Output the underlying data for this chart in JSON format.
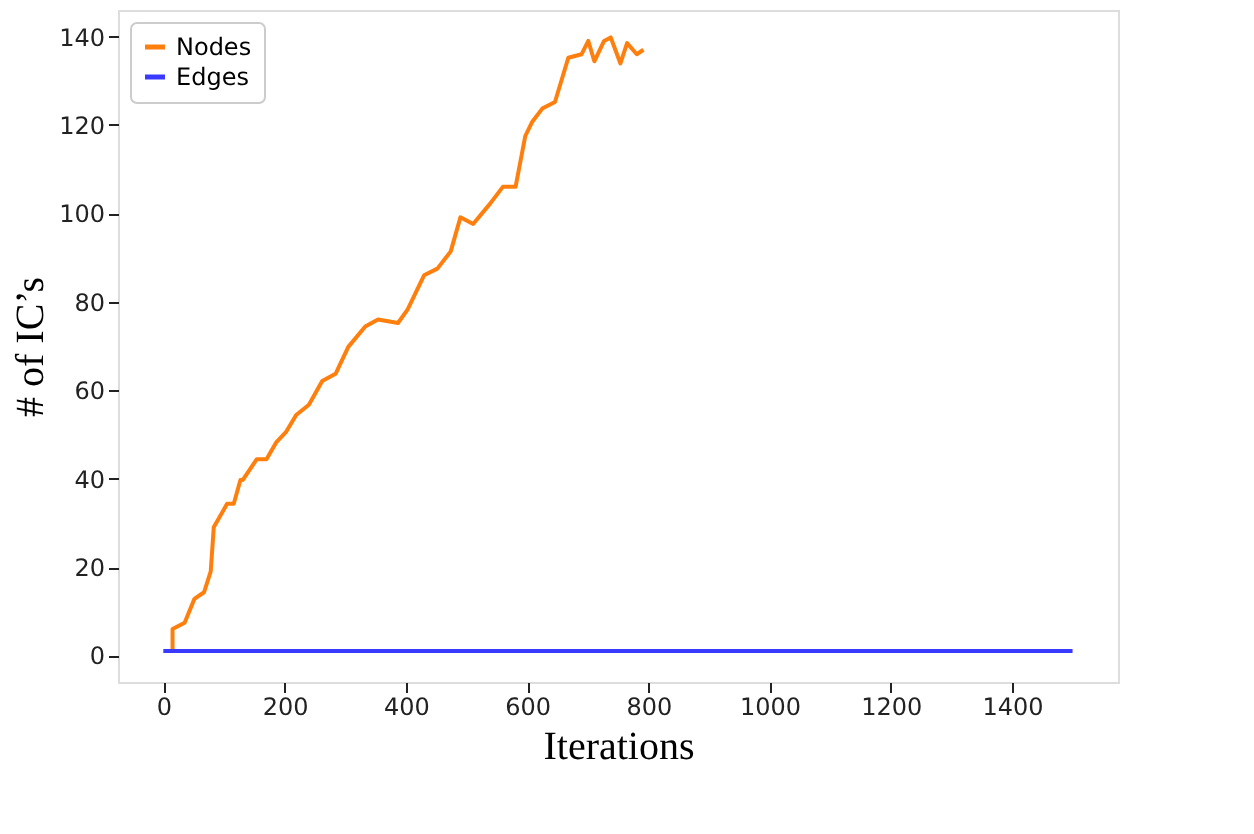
{
  "chart_data": {
    "type": "line",
    "xlabel": "Iterations",
    "ylabel": "# of IC’s",
    "xlim": [
      -75,
      1575
    ],
    "ylim": [
      -6,
      146
    ],
    "xticks": [
      0,
      200,
      400,
      600,
      800,
      1000,
      1200,
      1400
    ],
    "yticks": [
      0,
      20,
      40,
      60,
      80,
      100,
      120,
      140
    ],
    "grid": false,
    "legend": "top left",
    "marker": "none",
    "line_style": "solid",
    "series": [
      {
        "name": "Nodes",
        "color": "#ff7f0e",
        "x": [
          0,
          15,
          15,
          35,
          51,
          67,
          78,
          83,
          105,
          116,
          127,
          131,
          154,
          170,
          186,
          202,
          219,
          240,
          262,
          284,
          305,
          333,
          354,
          387,
          403,
          430,
          452,
          474,
          490,
          511,
          539,
          560,
          581,
          597,
          608,
          625,
          646,
          668,
          690,
          701,
          711,
          727,
          738,
          754,
          765,
          781,
          792
        ],
        "values": [
          1,
          1,
          6,
          7.4,
          12.8,
          14.3,
          19,
          29,
          34.3,
          34.3,
          39.7,
          39.7,
          44.4,
          44.4,
          48.2,
          50.5,
          54.4,
          56.7,
          62.1,
          63.7,
          69.8,
          74.4,
          76,
          75.2,
          78.3,
          86,
          87.5,
          91.4,
          99.1,
          97.6,
          102.2,
          106,
          106,
          117.5,
          120.6,
          123.7,
          125.2,
          135.2,
          136,
          139,
          134.4,
          139,
          139.8,
          133.9,
          138.5,
          136,
          137
        ]
      },
      {
        "name": "Edges",
        "color": "#3a3aff",
        "x": [
          0,
          1500
        ],
        "values": [
          1,
          1
        ]
      }
    ]
  }
}
